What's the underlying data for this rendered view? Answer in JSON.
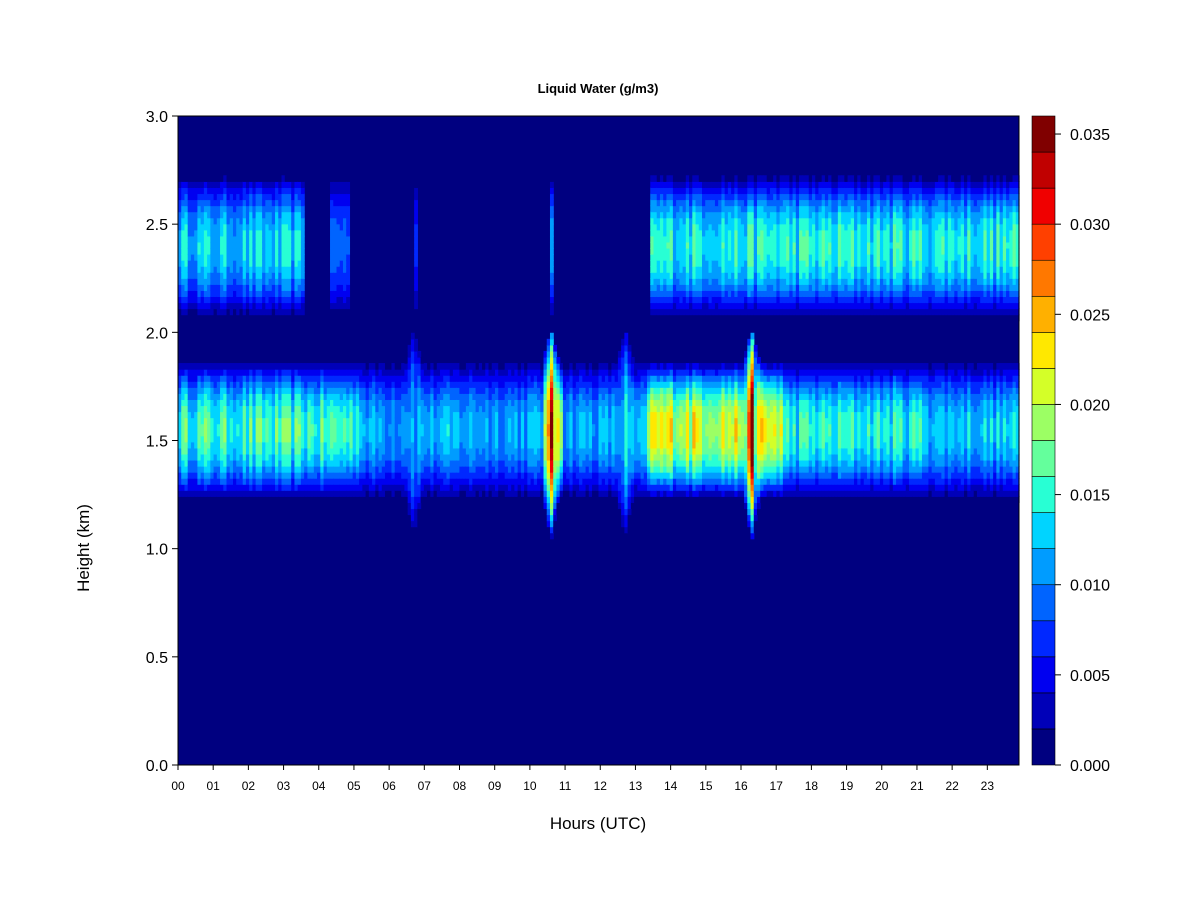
{
  "chart_data": {
    "type": "heatmap",
    "title": "Liquid Water (g/m3)",
    "xlabel": "Hours (UTC)",
    "ylabel": "Height (km)",
    "xlim": [
      0,
      23.9
    ],
    "ylim": [
      0,
      3.0
    ],
    "x_ticks": [
      "00",
      "01",
      "02",
      "03",
      "04",
      "05",
      "06",
      "07",
      "08",
      "09",
      "10",
      "11",
      "12",
      "13",
      "14",
      "15",
      "16",
      "17",
      "18",
      "19",
      "20",
      "21",
      "22",
      "23"
    ],
    "y_ticks": [
      "0.0",
      "0.5",
      "1.0",
      "1.5",
      "2.0",
      "2.5",
      "3.0"
    ],
    "colorbar": {
      "min": 0.0,
      "max": 0.036,
      "ticks": [
        "0.000",
        "0.005",
        "0.010",
        "0.015",
        "0.020",
        "0.025",
        "0.030",
        "0.035"
      ],
      "colors": [
        "#000080",
        "#0000b8",
        "#0000f0",
        "#0028ff",
        "#0064ff",
        "#009cff",
        "#00d4ff",
        "#28ffd4",
        "#64ff9c",
        "#9cff64",
        "#d4ff28",
        "#ffe800",
        "#ffb000",
        "#ff7800",
        "#ff4000",
        "#f00000",
        "#c00000",
        "#800000"
      ]
    },
    "background_value": 0.0,
    "upper_layer": {
      "bottom_km": 2.05,
      "top_km": 2.72,
      "peak_km": 2.4,
      "segments": [
        {
          "start_h": 0.0,
          "end_h": 3.6,
          "peak": 0.013
        },
        {
          "start_h": 4.3,
          "end_h": 4.9,
          "peak": 0.009
        },
        {
          "start_h": 6.7,
          "end_h": 6.8,
          "peak": 0.008
        },
        {
          "start_h": 10.6,
          "end_h": 10.7,
          "peak": 0.01
        },
        {
          "start_h": 13.4,
          "end_h": 23.9,
          "peak": 0.015
        }
      ]
    },
    "lower_layer": {
      "bottom_km": 1.22,
      "top_km": 1.87,
      "peak_km": 1.55,
      "segments": [
        {
          "start_h": 0.0,
          "end_h": 5.2,
          "peak": 0.016
        },
        {
          "start_h": 5.2,
          "end_h": 10.4,
          "peak": 0.012
        },
        {
          "start_h": 10.4,
          "end_h": 10.9,
          "peak": 0.024
        },
        {
          "start_h": 10.9,
          "end_h": 13.3,
          "peak": 0.012
        },
        {
          "start_h": 13.3,
          "end_h": 17.2,
          "peak": 0.022
        },
        {
          "start_h": 17.2,
          "end_h": 21.3,
          "peak": 0.015
        },
        {
          "start_h": 21.3,
          "end_h": 23.9,
          "peak": 0.013
        }
      ],
      "spikes": [
        {
          "hour": 6.7,
          "value": 0.014
        },
        {
          "hour": 10.6,
          "value": 0.032
        },
        {
          "hour": 12.7,
          "value": 0.016
        },
        {
          "hour": 16.3,
          "value": 0.035
        }
      ]
    }
  }
}
